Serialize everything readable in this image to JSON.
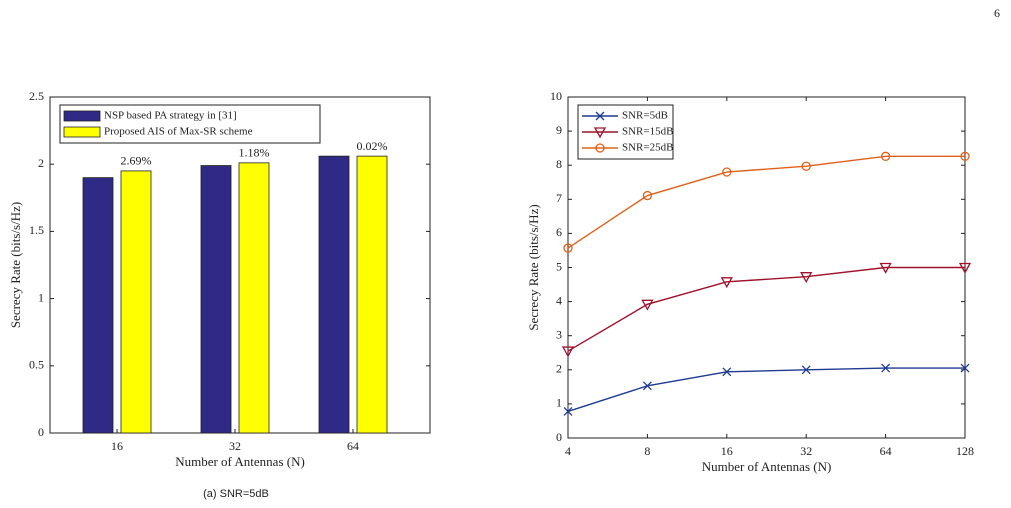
{
  "page_number": "6",
  "caption": "(a) SNR=5dB",
  "chart_data": [
    {
      "type": "bar",
      "ylabel": "Secrecy Rate (bits/s/Hz)",
      "xlabel": "Number of Antennas (N)",
      "categories": [
        "16",
        "32",
        "64"
      ],
      "series": [
        {
          "name": "NSP based PA strategy in [31]",
          "color": "#2e2a86",
          "values": [
            1.9,
            1.99,
            2.06
          ]
        },
        {
          "name": "Proposed AIS of Max-SR scheme",
          "color": "#ffff00",
          "values": [
            1.95,
            2.01,
            2.06
          ]
        }
      ],
      "annotations": [
        "2.69%",
        "1.18%",
        "0.02%"
      ],
      "ylim": [
        0,
        2.5
      ],
      "yticks": [
        0,
        0.5,
        1,
        1.5,
        2,
        2.5
      ],
      "legend": "top-left",
      "grid": false
    },
    {
      "type": "line",
      "ylabel": "Secrecy Rate (bits/s/Hz)",
      "xlabel": "Number of Antennas (N)",
      "x": [
        4,
        8,
        16,
        32,
        64,
        128
      ],
      "xlog": true,
      "xlim": [
        4,
        128
      ],
      "xticks": [
        4,
        8,
        16,
        32,
        64,
        128
      ],
      "series": [
        {
          "name": "SNR=5dB",
          "color": "#1f3a93",
          "marker": "x",
          "values": [
            0.78,
            1.53,
            1.94,
            2.0,
            2.05,
            2.05
          ]
        },
        {
          "name": "SNR=15dB",
          "color": "#a0102a",
          "marker": "triangle-down",
          "values": [
            2.55,
            3.92,
            4.58,
            4.73,
            5.0,
            5.0
          ]
        },
        {
          "name": "SNR=25dB",
          "color": "#e0601a",
          "marker": "circle",
          "values": [
            5.57,
            7.11,
            7.8,
            7.97,
            8.26,
            8.26
          ]
        }
      ],
      "ylim": [
        0,
        10
      ],
      "yticks": [
        0,
        1,
        2,
        3,
        4,
        5,
        6,
        7,
        8,
        9,
        10
      ],
      "legend": "top-left",
      "grid": false
    }
  ]
}
